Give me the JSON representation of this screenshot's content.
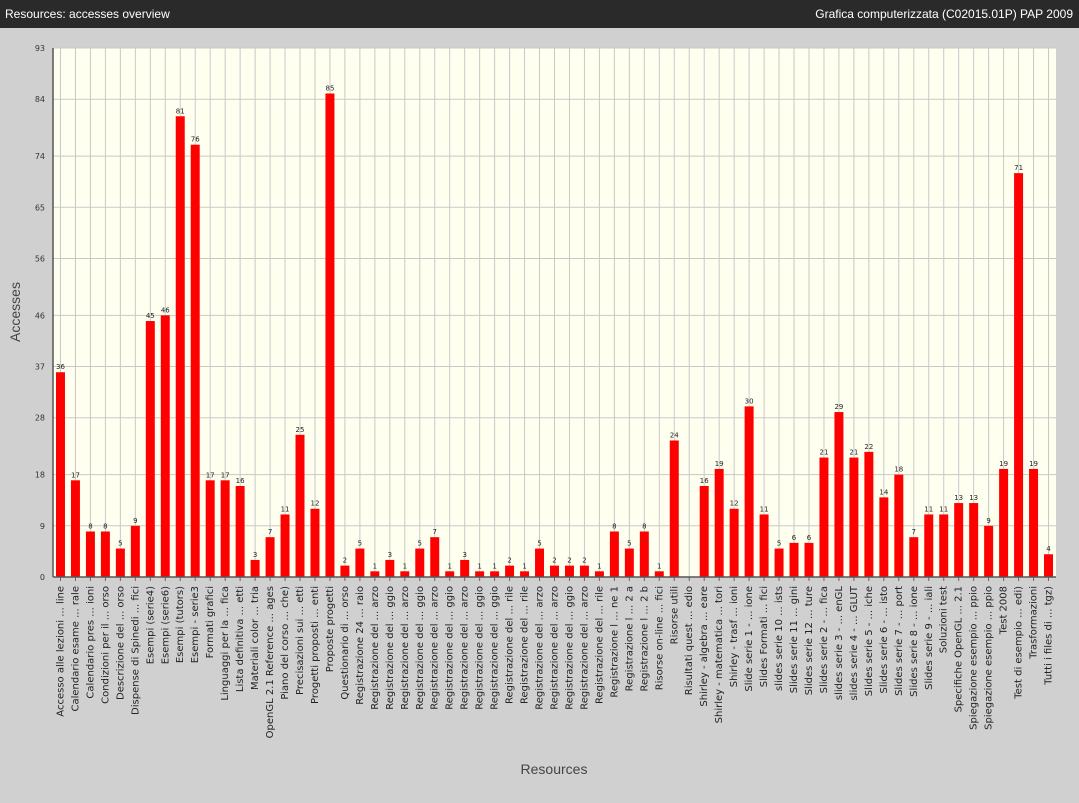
{
  "window": {
    "title": "Resources: accesses overview",
    "course": "Grafica computerizzata (C02015.01P) PAP 2009"
  },
  "colors": {
    "bar": "#ff0000",
    "plot_bg": "#fffff0",
    "grid": "#c8c8c8",
    "page_bg": "#d0d0d0"
  },
  "chart_data": {
    "type": "bar",
    "xlabel": "Resources",
    "ylabel": "Accesses",
    "ylim": [
      0,
      93
    ],
    "yticks": [
      0,
      9,
      18,
      28,
      37,
      46,
      56,
      65,
      74,
      84,
      93
    ],
    "grid": true,
    "categories": [
      "Accesso alle lezioni ... line",
      "Calendario esame ... rale",
      "Calendario pres ... ioni",
      "Condizioni per il ... orso",
      "Descrizione del ... orso",
      "Dispense di Spinedi ... fici",
      "Esempi (serie4)",
      "Esempi (serie6)",
      "Esempi (tutors)",
      "Esempi - serie3",
      "Formati grafici",
      "Linguaggi per la ... fica",
      "Lista definitiva ... etti",
      "Materiali color ... tria",
      "OpenGL 2.1 Reference ... ages",
      "Piano del corso ... che)",
      "Precisazioni sui ... etti",
      "Progetti proposti ... enti",
      "Proposte progetti",
      "Questionario di ... orso",
      "Registrazione 24 ... raio",
      "Registrazione del ... arzo",
      "Registrazione del ... ggio",
      "Registrazione del ... arzo",
      "Registrazione del ... ggio",
      "Registrazione del ... arzo",
      "Registrazione del ... ggio",
      "Registrazione del ... arzo",
      "Registrazione del ... ggio",
      "Registrazione del ... ggio",
      "Registrazione del ... rile",
      "Registrazione del ... rile",
      "Registrazione del ... arzo",
      "Registrazione del ... arzo",
      "Registrazione del ... ggio",
      "Registrazione del ... arzo",
      "Registrazione del ... rile",
      "Registrazione l ... ne 1",
      "Registrazione l ... 2 a",
      "Registrazione l ... 2 b",
      "Risorse on-line ... fici",
      "Risorse utili",
      "Risultati quest ... edio",
      "Shirley - algebra ... eare",
      "Shirley - matematica ... tori",
      "Shirley - trasf ... ioni",
      "Slide serie 1 - ... ione",
      "Slides Formati ... fici",
      "slides serie 10 ... ists",
      "Slides serie 11 ... gini",
      "Slides serie 12 ... ture",
      "Slides serie 2 - ... fica",
      "slides serie 3 - ... enGL",
      "slides serie 4 - ... GLUT",
      "Slides serie 5 - ... iche",
      "Slides serie 6 - ... isto",
      "Slides serie 7 - ... port",
      "Slides serie 8 - ... ione",
      "Slides serie 9 - ... iali",
      "Soluzioni test",
      "Specifiche OpenGL ... 2.1",
      "Spiegazione esempio ... ppio",
      "Spiegazione esempio ... ppio",
      "Test 2008",
      "Test di esempio ... edi)",
      "Trasformazioni",
      "Tutti i files di ... tgz)"
    ],
    "values": [
      36,
      17,
      8,
      8,
      5,
      9,
      45,
      46,
      81,
      76,
      17,
      17,
      16,
      3,
      7,
      11,
      25,
      12,
      85,
      2,
      5,
      1,
      3,
      1,
      5,
      7,
      1,
      3,
      1,
      1,
      2,
      1,
      5,
      2,
      2,
      2,
      1,
      8,
      5,
      8,
      1,
      24,
      0,
      16,
      19,
      12,
      30,
      11,
      5,
      6,
      6,
      21,
      29,
      21,
      22,
      14,
      18,
      7,
      11,
      11,
      13,
      13,
      9,
      19,
      71,
      19,
      4
    ],
    "data_labels": [
      "36",
      "17",
      "8",
      "8",
      "5",
      "9",
      "45",
      "46",
      "81",
      "76",
      "17",
      "17",
      "16",
      "3",
      "7",
      "11",
      "25",
      "12",
      "85",
      "2",
      "5",
      "1",
      "3",
      "1",
      "5",
      "7",
      "1",
      "3",
      "1",
      "1",
      "2",
      "1",
      "5",
      "2",
      "2",
      "2",
      "1",
      "8",
      "5",
      "8",
      "1",
      "24",
      "",
      "16",
      "19",
      "12",
      "30",
      "11",
      "5",
      "6",
      "6",
      "21",
      "29",
      "21",
      "22",
      "14",
      "18",
      "7",
      "11",
      "11",
      "13",
      "13",
      "9",
      "19",
      "71",
      "19",
      "4"
    ]
  }
}
